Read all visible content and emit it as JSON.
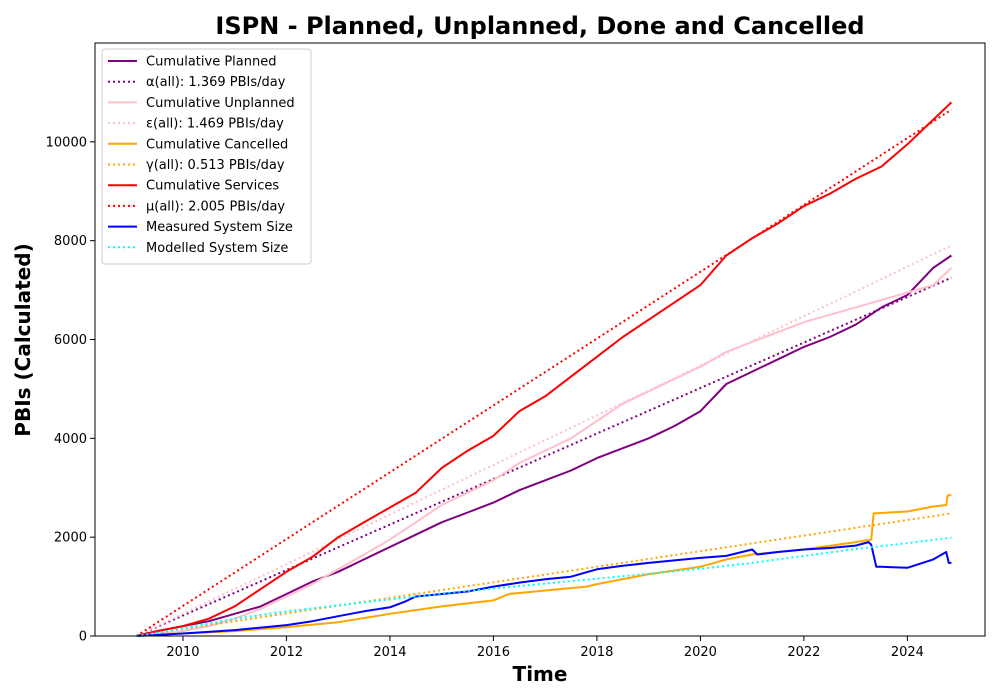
{
  "chart_data": {
    "type": "line",
    "title": "ISPN - Planned, Unplanned, Done  and Cancelled",
    "xlabel": "Time",
    "ylabel": "PBIs (Calculated)",
    "xlim": [
      2008.3,
      2025.5
    ],
    "ylim": [
      0,
      12000
    ],
    "x_ticks": [
      2010,
      2012,
      2014,
      2016,
      2018,
      2020,
      2022,
      2024
    ],
    "y_ticks": [
      0,
      2000,
      4000,
      6000,
      8000,
      10000
    ],
    "x_tick_labels": [
      "2010",
      "2012",
      "2014",
      "2016",
      "2018",
      "2020",
      "2022",
      "2024"
    ],
    "y_tick_labels": [
      "0",
      "2000",
      "4000",
      "6000",
      "8000",
      "10000"
    ],
    "legend_position": "top-left",
    "grid": false,
    "series": [
      {
        "name": "Cumulative Planned",
        "color": "#800080",
        "style": "solid",
        "x": [
          2009.1,
          2009.5,
          2010.0,
          2010.5,
          2011.0,
          2011.5,
          2012.0,
          2012.5,
          2013.0,
          2013.5,
          2014.0,
          2014.5,
          2015.0,
          2015.5,
          2016.0,
          2016.5,
          2017.0,
          2017.5,
          2018.0,
          2018.5,
          2019.0,
          2019.5,
          2020.0,
          2020.5,
          2021.0,
          2021.5,
          2022.0,
          2022.5,
          2023.0,
          2023.5,
          2024.0,
          2024.5,
          2024.85
        ],
        "y": [
          0,
          100,
          200,
          300,
          450,
          600,
          850,
          1100,
          1300,
          1550,
          1800,
          2050,
          2300,
          2500,
          2700,
          2950,
          3150,
          3350,
          3600,
          3800,
          4000,
          4250,
          4550,
          5100,
          5350,
          5600,
          5850,
          6050,
          6300,
          6650,
          6900,
          7450,
          7700
        ]
      },
      {
        "name": "α(all): 1.369 PBIs/day",
        "color": "#800080",
        "style": "dotted",
        "x": [
          2009.1,
          2024.85
        ],
        "y": [
          0,
          7250
        ]
      },
      {
        "name": "Cumulative Unplanned",
        "color": "#ffc0cb",
        "style": "solid",
        "x": [
          2009.1,
          2009.5,
          2010.0,
          2010.5,
          2011.0,
          2011.5,
          2012.0,
          2012.5,
          2013.0,
          2013.5,
          2014.0,
          2014.5,
          2015.0,
          2015.5,
          2016.0,
          2016.5,
          2017.0,
          2017.5,
          2018.0,
          2018.5,
          2019.0,
          2019.5,
          2020.0,
          2020.5,
          2021.0,
          2021.5,
          2022.0,
          2022.5,
          2023.0,
          2023.5,
          2024.0,
          2024.5,
          2024.85
        ],
        "y": [
          0,
          50,
          100,
          200,
          350,
          550,
          800,
          1050,
          1350,
          1650,
          1950,
          2300,
          2650,
          2900,
          3150,
          3500,
          3750,
          4000,
          4350,
          4700,
          4950,
          5200,
          5450,
          5750,
          5950,
          6150,
          6350,
          6500,
          6650,
          6800,
          6950,
          7100,
          7450
        ]
      },
      {
        "name": "ε(all): 1.469 PBIs/day",
        "color": "#ffc0cb",
        "style": "dotted",
        "x": [
          2009.1,
          2024.85
        ],
        "y": [
          0,
          7900
        ]
      },
      {
        "name": "Cumulative Cancelled",
        "color": "#ffa500",
        "style": "solid",
        "x": [
          2009.1,
          2010.0,
          2011.0,
          2012.0,
          2013.0,
          2014.0,
          2015.0,
          2016.0,
          2016.3,
          2017.0,
          2017.8,
          2018.0,
          2019.0,
          2020.0,
          2020.5,
          2021.0,
          2022.0,
          2023.0,
          2023.3,
          2023.35,
          2024.0,
          2024.5,
          2024.75,
          2024.78,
          2024.85
        ],
        "y": [
          0,
          50,
          100,
          180,
          280,
          450,
          600,
          720,
          850,
          920,
          1000,
          1050,
          1250,
          1400,
          1550,
          1650,
          1750,
          1900,
          1950,
          2480,
          2520,
          2620,
          2650,
          2850,
          2850
        ]
      },
      {
        "name": "γ(all): 0.513 PBIs/day",
        "color": "#ffa500",
        "style": "dotted",
        "x": [
          2009.1,
          2024.85
        ],
        "y": [
          0,
          2480
        ]
      },
      {
        "name": "Cumulative Services",
        "color": "#ff0000",
        "style": "solid",
        "x": [
          2009.1,
          2009.5,
          2010.0,
          2010.5,
          2011.0,
          2011.5,
          2012.0,
          2012.5,
          2013.0,
          2013.5,
          2014.0,
          2014.5,
          2015.0,
          2015.5,
          2016.0,
          2016.5,
          2017.0,
          2017.5,
          2018.0,
          2018.5,
          2019.0,
          2019.5,
          2020.0,
          2020.5,
          2021.0,
          2021.5,
          2022.0,
          2022.5,
          2023.0,
          2023.5,
          2024.0,
          2024.5,
          2024.85
        ],
        "y": [
          0,
          100,
          200,
          350,
          600,
          950,
          1300,
          1600,
          2000,
          2300,
          2600,
          2900,
          3400,
          3750,
          4050,
          4550,
          4850,
          5250,
          5650,
          6050,
          6400,
          6750,
          7100,
          7700,
          8050,
          8350,
          8700,
          8950,
          9250,
          9500,
          9950,
          10450,
          10800
        ]
      },
      {
        "name": "μ(all): 2.005 PBIs/day",
        "color": "#ff0000",
        "style": "dotted",
        "x": [
          2009.1,
          2024.85
        ],
        "y": [
          0,
          10650
        ]
      },
      {
        "name": "Measured System Size",
        "color": "#0000ff",
        "style": "solid",
        "x": [
          2009.1,
          2010.0,
          2011.0,
          2012.0,
          2012.5,
          2013.0,
          2013.5,
          2014.0,
          2014.3,
          2014.5,
          2015.0,
          2015.5,
          2016.0,
          2016.5,
          2017.0,
          2017.5,
          2018.0,
          2018.5,
          2019.0,
          2019.5,
          2020.0,
          2020.5,
          2021.0,
          2021.1,
          2021.5,
          2022.0,
          2022.5,
          2023.0,
          2023.25,
          2023.3,
          2023.4,
          2023.5,
          2024.0,
          2024.5,
          2024.75,
          2024.8,
          2024.85
        ],
        "y": [
          0,
          50,
          120,
          220,
          300,
          400,
          500,
          580,
          700,
          800,
          850,
          900,
          1000,
          1080,
          1150,
          1200,
          1350,
          1420,
          1480,
          1530,
          1580,
          1620,
          1750,
          1650,
          1700,
          1750,
          1780,
          1830,
          1900,
          1850,
          1400,
          1400,
          1380,
          1550,
          1700,
          1480,
          1480
        ]
      },
      {
        "name": "Modelled System Size",
        "color": "#00ffff",
        "style": "dotted",
        "x": [
          2009.1,
          2010.0,
          2011.0,
          2012.0,
          2013.0,
          2014.0,
          2015.0,
          2016.0,
          2017.0,
          2018.0,
          2019.0,
          2020.0,
          2021.0,
          2022.0,
          2023.0,
          2024.0,
          2024.85
        ],
        "y": [
          0,
          150,
          350,
          500,
          620,
          740,
          860,
          960,
          1060,
          1160,
          1260,
          1360,
          1480,
          1620,
          1760,
          1880,
          1990
        ]
      }
    ]
  }
}
